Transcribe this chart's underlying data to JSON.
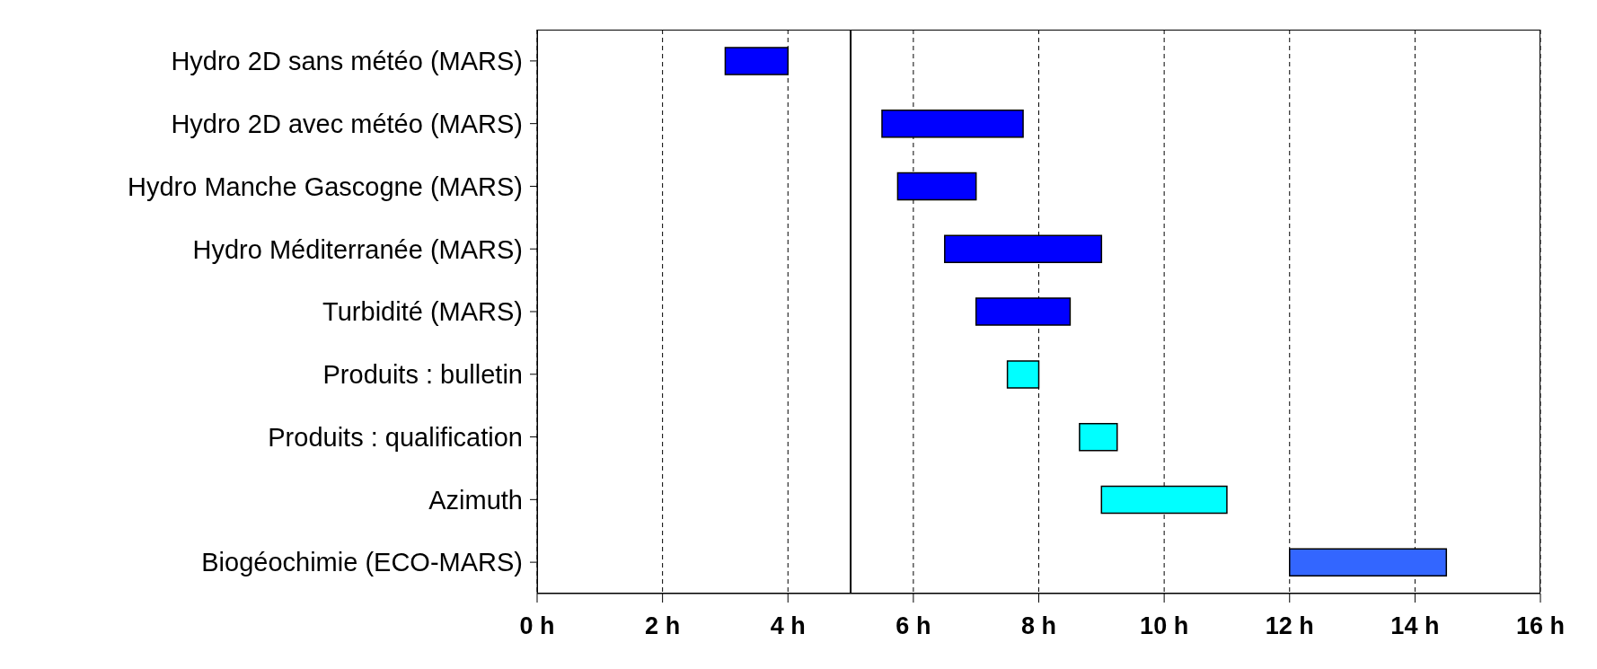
{
  "chart_data": {
    "type": "bar",
    "orientation": "horizontal",
    "categories": [
      "Hydro 2D sans météo (MARS)",
      "Hydro 2D avec météo (MARS)",
      "Hydro Manche Gascogne (MARS)",
      "Hydro Méditerranée (MARS)",
      "Turbidité (MARS)",
      "Produits : bulletin",
      "Produits : qualification",
      "Azimuth",
      "Biogéochimie (ECO-MARS)"
    ],
    "base": [
      3,
      5.5,
      5.75,
      6.5,
      7,
      7.5,
      8.65,
      9,
      12
    ],
    "values": [
      1,
      2.25,
      1.25,
      2.5,
      1.5,
      0.5,
      0.6,
      2,
      2.5
    ],
    "colors": [
      "#0000ff",
      "#0000ff",
      "#0000ff",
      "#0000ff",
      "#0000ff",
      "#00ffff",
      "#00ffff",
      "#00ffff",
      "#3366ff"
    ],
    "xlim": [
      0,
      16
    ],
    "xticks": [
      {
        "value": 0,
        "label": "0 h"
      },
      {
        "value": 2,
        "label": "2 h"
      },
      {
        "value": 4,
        "label": "4 h"
      },
      {
        "value": 6,
        "label": "6 h"
      },
      {
        "value": 8,
        "label": "8 h"
      },
      {
        "value": 10,
        "label": "10 h"
      },
      {
        "value": 12,
        "label": "12 h"
      },
      {
        "value": 14,
        "label": "14 h"
      },
      {
        "value": 16,
        "label": "16 h"
      }
    ],
    "grid": "x",
    "ref_lines": [
      {
        "axis": "x",
        "value": 5,
        "color": "#000000",
        "line_style": "solid"
      }
    ]
  }
}
